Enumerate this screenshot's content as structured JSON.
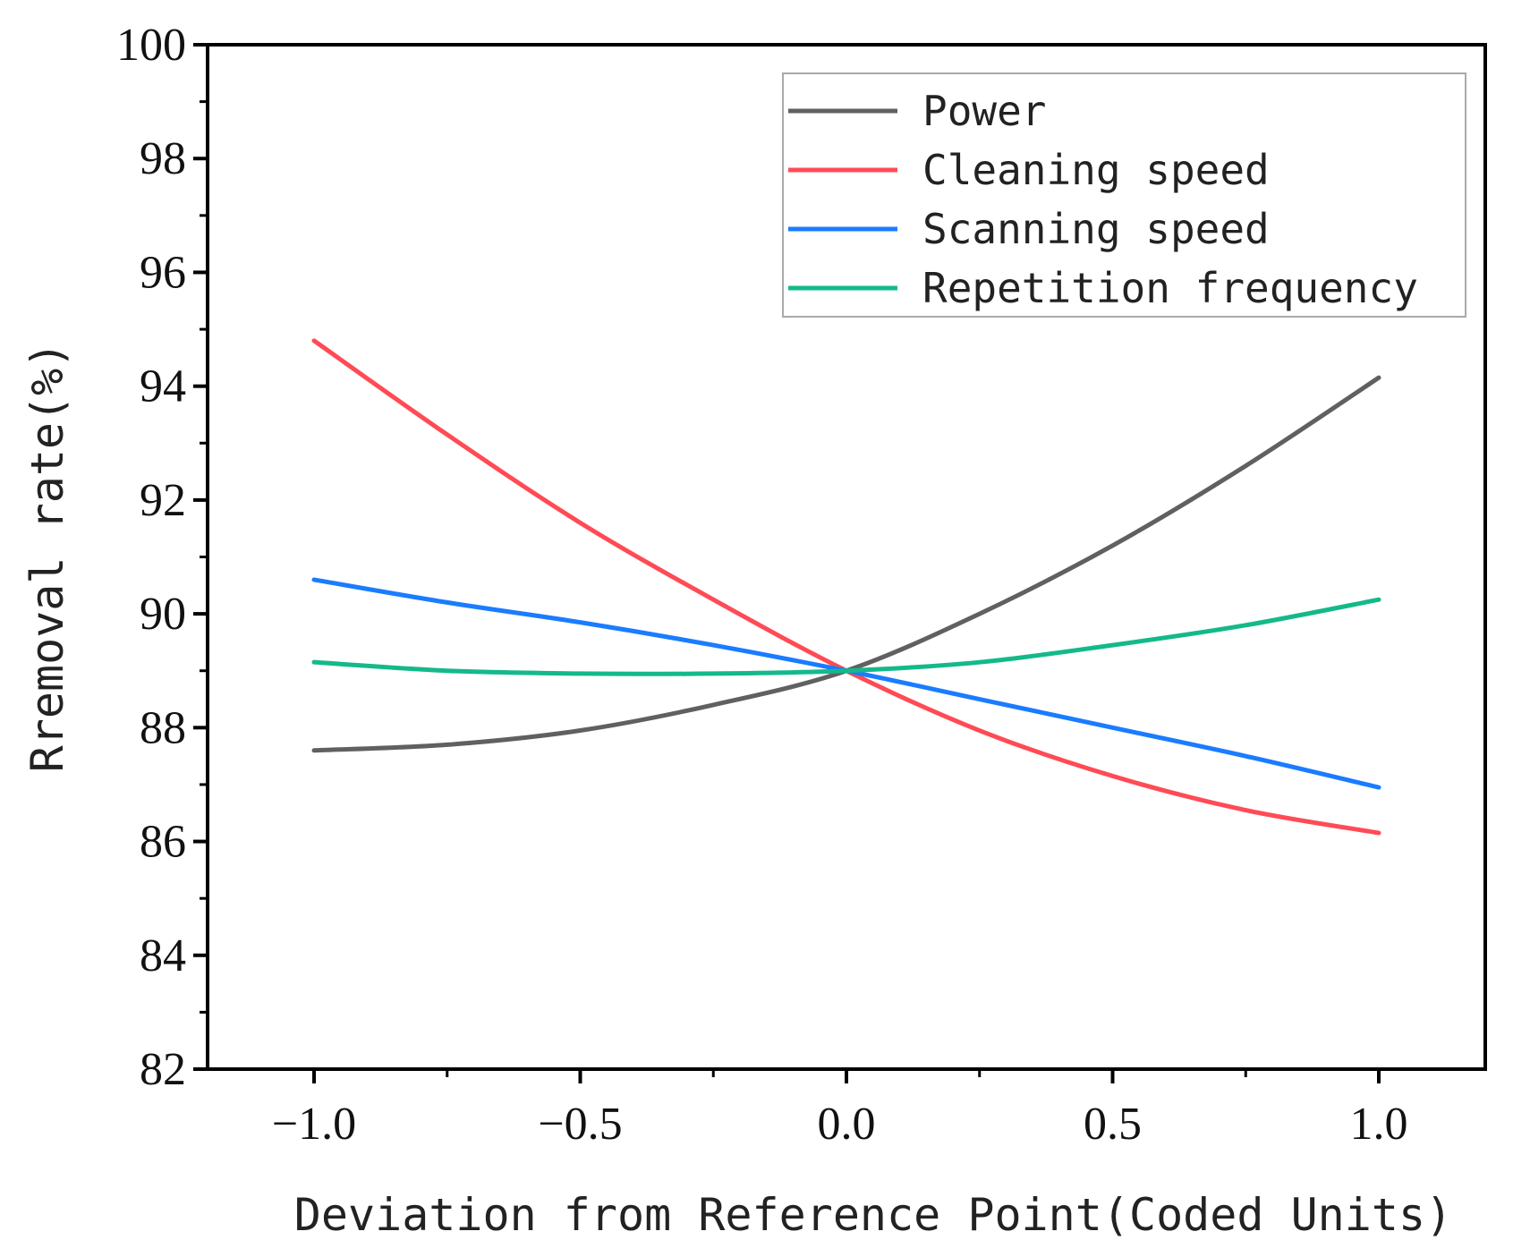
{
  "chart_data": {
    "type": "line",
    "title": "",
    "xlabel": "Deviation from Reference Point(Coded Units)",
    "ylabel": "Rremoval rate(%)",
    "xlim": [
      -1.2,
      1.2
    ],
    "ylim": [
      82,
      100
    ],
    "xticks": [
      -1.0,
      -0.5,
      0.0,
      0.5,
      1.0
    ],
    "xtick_labels": [
      "−1.0",
      "−0.5",
      "0.0",
      "0.5",
      "1.0"
    ],
    "yticks": [
      82,
      84,
      86,
      88,
      90,
      92,
      94,
      96,
      98,
      100
    ],
    "ytick_labels": [
      "82",
      "84",
      "86",
      "88",
      "90",
      "92",
      "94",
      "96",
      "98",
      "100"
    ],
    "grid": false,
    "legend_position": "top-right",
    "series": [
      {
        "name": "Power",
        "color": "#606060",
        "x": [
          -1.0,
          -0.75,
          -0.5,
          -0.25,
          0.0,
          0.25,
          0.5,
          0.75,
          1.0
        ],
        "y": [
          87.6,
          87.7,
          87.95,
          88.4,
          89.0,
          90.0,
          91.2,
          92.6,
          94.15
        ]
      },
      {
        "name": "Cleaning speed",
        "color": "#ff4b55",
        "x": [
          -1.0,
          -0.75,
          -0.5,
          -0.25,
          0.0,
          0.25,
          0.5,
          0.75,
          1.0
        ],
        "y": [
          94.8,
          93.15,
          91.6,
          90.25,
          89.0,
          87.95,
          87.15,
          86.55,
          86.15
        ]
      },
      {
        "name": "Scanning speed",
        "color": "#1a7cff",
        "x": [
          -1.0,
          -0.75,
          -0.5,
          -0.25,
          0.0,
          0.25,
          0.5,
          0.75,
          1.0
        ],
        "y": [
          90.6,
          90.2,
          89.85,
          89.45,
          89.0,
          88.5,
          88.0,
          87.5,
          86.95
        ]
      },
      {
        "name": "Repetition frequency",
        "color": "#14b98a",
        "x": [
          -1.0,
          -0.75,
          -0.5,
          -0.25,
          0.0,
          0.25,
          0.5,
          0.75,
          1.0
        ],
        "y": [
          89.15,
          89.0,
          88.95,
          88.95,
          89.0,
          89.15,
          89.45,
          89.8,
          90.25
        ]
      }
    ]
  }
}
